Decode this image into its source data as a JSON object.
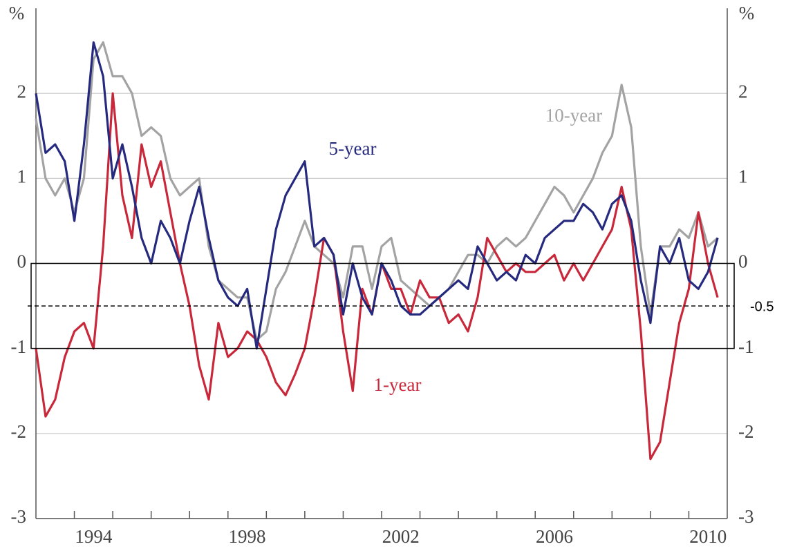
{
  "chart_data": {
    "type": "line",
    "y_unit": "%",
    "y2_unit": "%",
    "x": [
      1993,
      1993.25,
      1993.5,
      1993.75,
      1994,
      1994.25,
      1994.5,
      1994.75,
      1995,
      1995.25,
      1995.5,
      1995.75,
      1996,
      1996.25,
      1996.5,
      1996.75,
      1997,
      1997.25,
      1997.5,
      1997.75,
      1998,
      1998.25,
      1998.5,
      1998.75,
      1999,
      1999.25,
      1999.5,
      1999.75,
      2000,
      2000.25,
      2000.5,
      2000.75,
      2001,
      2001.25,
      2001.5,
      2001.75,
      2002,
      2002.25,
      2002.5,
      2002.75,
      2003,
      2003.25,
      2003.5,
      2003.75,
      2004,
      2004.25,
      2004.5,
      2004.75,
      2005,
      2005.25,
      2005.5,
      2005.75,
      2006,
      2006.25,
      2006.5,
      2006.75,
      2007,
      2007.25,
      2007.5,
      2007.75,
      2008,
      2008.25,
      2008.5,
      2008.75,
      2009,
      2009.25,
      2009.5,
      2009.75,
      2010,
      2010.25,
      2010.5,
      2010.75
    ],
    "series": [
      {
        "name": "10-year",
        "color": "#a3a3a3",
        "values": [
          1.7,
          1.0,
          0.8,
          1.0,
          0.6,
          1.0,
          2.4,
          2.6,
          2.2,
          2.2,
          2.0,
          1.5,
          1.6,
          1.5,
          1.0,
          0.8,
          0.9,
          1.0,
          0.2,
          -0.2,
          -0.3,
          -0.4,
          -0.4,
          -0.9,
          -0.8,
          -0.3,
          -0.1,
          0.2,
          0.5,
          0.2,
          0.1,
          0.0,
          -0.4,
          0.2,
          0.2,
          -0.3,
          0.2,
          0.3,
          -0.2,
          -0.3,
          -0.4,
          -0.5,
          -0.4,
          -0.3,
          -0.1,
          0.1,
          0.1,
          0.0,
          0.2,
          0.3,
          0.2,
          0.3,
          0.5,
          0.7,
          0.9,
          0.8,
          0.6,
          0.8,
          1.0,
          1.3,
          1.5,
          2.1,
          1.6,
          0.2,
          -0.6,
          0.2,
          0.2,
          0.4,
          0.3,
          0.6,
          0.2,
          0.3
        ]
      },
      {
        "name": "1-year",
        "color": "#c8283a",
        "values": [
          -1.0,
          -1.8,
          -1.6,
          -1.1,
          -0.8,
          -0.7,
          -1.0,
          0.2,
          2.0,
          0.8,
          0.3,
          1.4,
          0.9,
          1.2,
          0.6,
          0.0,
          -0.5,
          -1.2,
          -1.6,
          -0.7,
          -1.1,
          -1.0,
          -0.8,
          -0.9,
          -1.1,
          -1.4,
          -1.55,
          -1.3,
          -1.0,
          -0.4,
          0.3,
          0.1,
          -0.8,
          -1.5,
          -0.3,
          -0.6,
          0.0,
          -0.3,
          -0.3,
          -0.6,
          -0.2,
          -0.4,
          -0.4,
          -0.7,
          -0.6,
          -0.8,
          -0.4,
          0.3,
          0.1,
          -0.1,
          0.0,
          -0.1,
          -0.1,
          0.0,
          0.1,
          -0.2,
          0.0,
          -0.2,
          0.0,
          0.2,
          0.4,
          0.9,
          0.4,
          -0.8,
          -2.3,
          -2.1,
          -1.4,
          -0.7,
          -0.3,
          0.6,
          0.0,
          -0.4
        ]
      },
      {
        "name": "5-year",
        "color": "#262a7e",
        "values": [
          2.0,
          1.3,
          1.4,
          1.2,
          0.5,
          1.4,
          2.6,
          2.2,
          1.0,
          1.4,
          0.9,
          0.3,
          0.0,
          0.5,
          0.3,
          0.0,
          0.5,
          0.9,
          0.3,
          -0.2,
          -0.4,
          -0.5,
          -0.3,
          -1.0,
          -0.3,
          0.4,
          0.8,
          1.0,
          1.2,
          0.2,
          0.3,
          0.1,
          -0.6,
          0.0,
          -0.4,
          -0.6,
          0.0,
          -0.2,
          -0.5,
          -0.6,
          -0.6,
          -0.5,
          -0.4,
          -0.3,
          -0.2,
          -0.3,
          0.2,
          0.0,
          -0.2,
          -0.1,
          -0.2,
          0.1,
          0.0,
          0.3,
          0.4,
          0.5,
          0.5,
          0.7,
          0.6,
          0.4,
          0.7,
          0.8,
          0.5,
          -0.2,
          -0.7,
          0.2,
          0.0,
          0.3,
          -0.2,
          -0.3,
          -0.1,
          0.3
        ]
      }
    ],
    "xlim": [
      1993,
      2011
    ],
    "xticks": [
      {
        "value": 1994.5,
        "label": "1994"
      },
      {
        "value": 1998.5,
        "label": "1998"
      },
      {
        "value": 2002.5,
        "label": "2002"
      },
      {
        "value": 2006.5,
        "label": "2006"
      },
      {
        "value": 2010.5,
        "label": "2010"
      }
    ],
    "x_minor_ticks": [
      1994,
      1995,
      1996,
      1997,
      1998,
      1999,
      2000,
      2001,
      2002,
      2003,
      2004,
      2005,
      2006,
      2007,
      2008,
      2009,
      2010
    ],
    "ylim": [
      -3,
      3
    ],
    "yticks": [
      -3,
      -2,
      -1,
      0,
      1,
      2
    ],
    "y2lim": [
      -3,
      3
    ],
    "y2ticks": [
      -3,
      -2,
      -1,
      0,
      1,
      2
    ],
    "grid": true,
    "band": [
      0,
      -1
    ],
    "reference_line": {
      "value": -0.5,
      "label": "-0.5"
    }
  }
}
